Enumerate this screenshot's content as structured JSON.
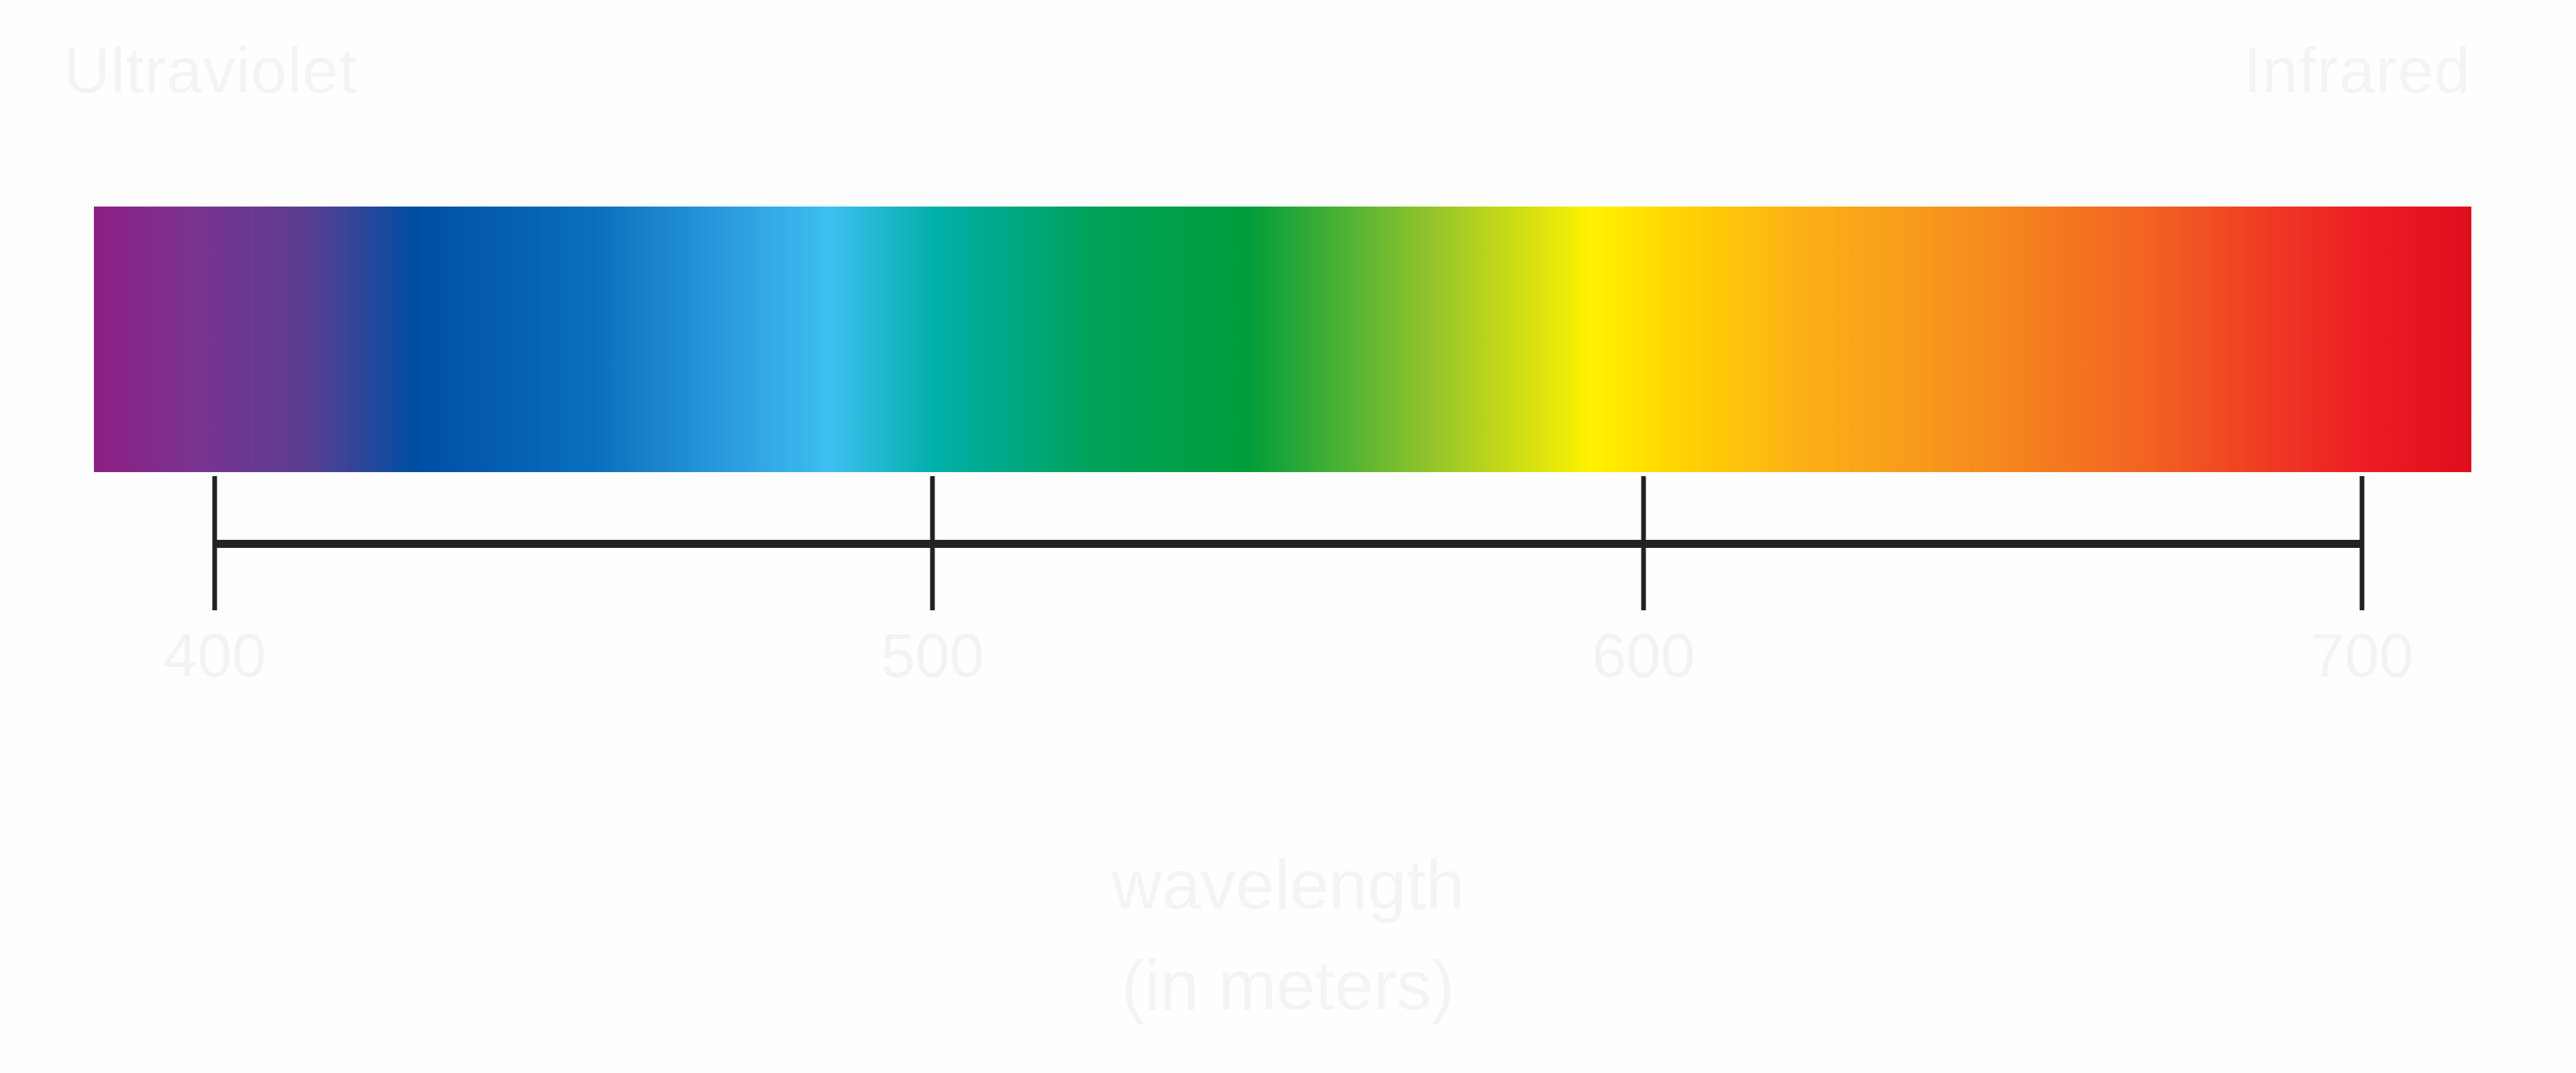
{
  "labels": {
    "left_end": "Ultraviolet",
    "right_end": "Infrared"
  },
  "spectrum": {
    "colors": [
      "#8e1e84",
      "#7b3390",
      "#3a4896",
      "#004ea3",
      "#0a6fbd",
      "#2d9ee0",
      "#3dbff0",
      "#00afa8",
      "#00a159",
      "#009d3c",
      "#8fc32d",
      "#fff200",
      "#ffd103",
      "#fcaf17",
      "#f7941d",
      "#f26522",
      "#ed1c24",
      "#df0e1d"
    ]
  },
  "scale": {
    "ticks": [
      {
        "value": 400,
        "label": "400"
      },
      {
        "value": 500,
        "label": "500"
      },
      {
        "value": 600,
        "label": "600"
      },
      {
        "value": 700,
        "label": "700"
      }
    ],
    "title_line1": "wavelength",
    "title_line2": "(in meters)",
    "line_color": "#222222"
  }
}
